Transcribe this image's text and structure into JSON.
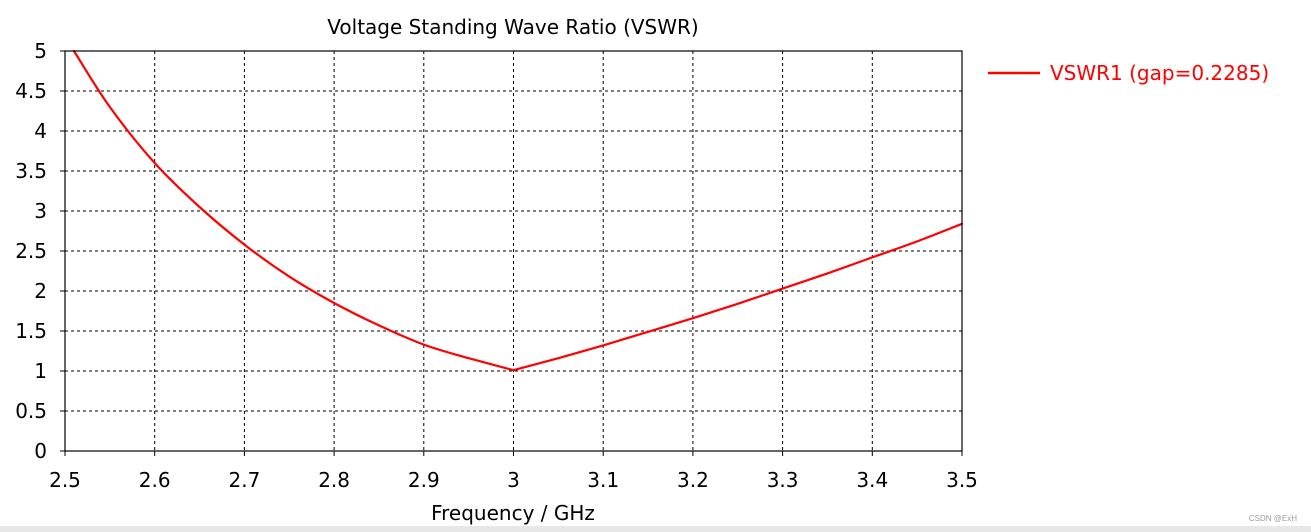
{
  "chart_data": {
    "type": "line",
    "title": "Voltage Standing Wave Ratio (VSWR)",
    "xlabel": "Frequency / GHz",
    "ylabel": "",
    "xlim": [
      2.5,
      3.5
    ],
    "ylim": [
      0,
      5
    ],
    "xticks": [
      "2.5",
      "2.6",
      "2.7",
      "2.8",
      "2.9",
      "3",
      "3.1",
      "3.2",
      "3.3",
      "3.4",
      "3.5"
    ],
    "yticks": [
      "0",
      "0.5",
      "1",
      "1.5",
      "2",
      "2.5",
      "3",
      "3.5",
      "4",
      "4.5",
      "5"
    ],
    "grid": true,
    "legend_position": "top-right outside",
    "series": [
      {
        "name": "VSWR1 (gap=0.2285)",
        "color": "#ff0000",
        "x": [
          2.51,
          2.55,
          2.6,
          2.65,
          2.7,
          2.75,
          2.8,
          2.85,
          2.9,
          2.95,
          3.0,
          3.05,
          3.1,
          3.15,
          3.2,
          3.25,
          3.3,
          3.35,
          3.4,
          3.45,
          3.5
        ],
        "y": [
          5.0,
          4.3,
          3.6,
          3.05,
          2.58,
          2.18,
          1.85,
          1.57,
          1.33,
          1.16,
          1.01,
          1.16,
          1.32,
          1.49,
          1.66,
          1.84,
          2.03,
          2.22,
          2.42,
          2.62,
          2.84
        ]
      }
    ]
  },
  "footer": {
    "watermark": "CSDN @ExH"
  }
}
